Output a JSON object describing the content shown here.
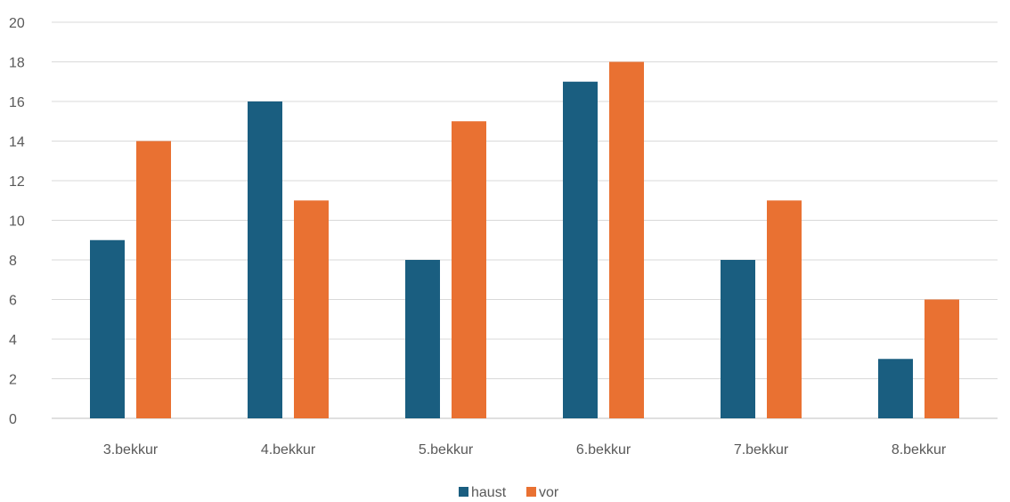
{
  "chart_data": {
    "type": "bar",
    "categories": [
      "3.bekkur",
      "4.bekkur",
      "5.bekkur",
      "6.bekkur",
      "7.bekkur",
      "8.bekkur"
    ],
    "series": [
      {
        "name": "haust",
        "color": "#1a5e80",
        "values": [
          9,
          16,
          8,
          17,
          8,
          3
        ]
      },
      {
        "name": "vor",
        "color": "#e97132",
        "values": [
          14,
          11,
          15,
          18,
          11,
          6
        ]
      }
    ],
    "ylim": [
      0,
      20
    ],
    "yticks": [
      0,
      2,
      4,
      6,
      8,
      10,
      12,
      14,
      16,
      18,
      20
    ],
    "grid": true,
    "legend_position": "bottom",
    "title": "",
    "xlabel": "",
    "ylabel": ""
  }
}
